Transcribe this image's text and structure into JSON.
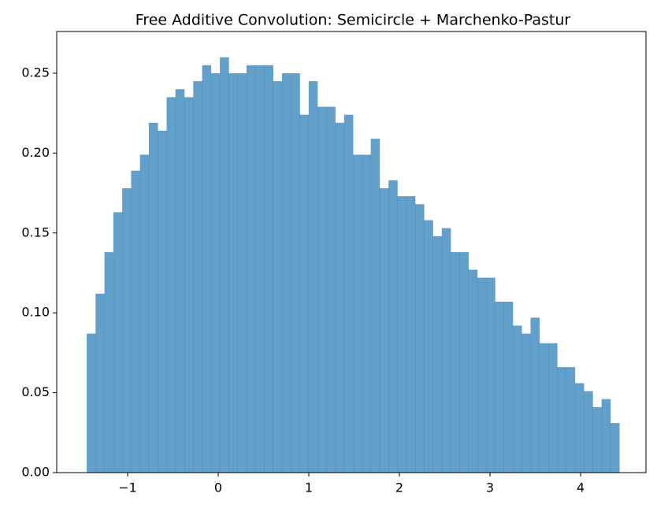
{
  "chart_data": {
    "type": "histogram",
    "title": "Free Additive Convolution: Semicircle + Marchenko-Pastur",
    "bins": [
      -1.452,
      -1.354,
      -1.256,
      -1.158,
      -1.06,
      -0.962,
      -0.864,
      -0.766,
      -0.668,
      -0.57,
      -0.472,
      -0.374,
      -0.276,
      -0.178,
      -0.08,
      0.018,
      0.116,
      0.214,
      0.312,
      0.41,
      0.508,
      0.606,
      0.704,
      0.802,
      0.9,
      0.998,
      1.096,
      1.194,
      1.292,
      1.39,
      1.488,
      1.586,
      1.684,
      1.782,
      1.88,
      1.978,
      2.076,
      2.174,
      2.272,
      2.37,
      2.468,
      2.566,
      2.664,
      2.762,
      2.86,
      2.958,
      3.056,
      3.154,
      3.252,
      3.35,
      3.448,
      3.546,
      3.644,
      3.742,
      3.84,
      3.938,
      4.036,
      4.134,
      4.232,
      4.33,
      4.428
    ],
    "counts": [
      0.087,
      0.112,
      0.138,
      0.163,
      0.178,
      0.189,
      0.199,
      0.219,
      0.214,
      0.235,
      0.24,
      0.235,
      0.245,
      0.255,
      0.25,
      0.26,
      0.25,
      0.25,
      0.255,
      0.255,
      0.255,
      0.245,
      0.25,
      0.25,
      0.224,
      0.245,
      0.229,
      0.229,
      0.219,
      0.224,
      0.199,
      0.199,
      0.209,
      0.178,
      0.183,
      0.173,
      0.173,
      0.168,
      0.158,
      0.148,
      0.153,
      0.138,
      0.138,
      0.127,
      0.122,
      0.122,
      0.107,
      0.107,
      0.092,
      0.087,
      0.097,
      0.081,
      0.081,
      0.066,
      0.066,
      0.056,
      0.051,
      0.041,
      0.046,
      0.031
    ],
    "color": "#1f77b4",
    "alpha": 0.7,
    "xlim": [
      -1.783,
      4.722
    ],
    "xticks": [
      {
        "value": -1,
        "label": "−1"
      },
      0,
      1,
      2,
      3,
      4
    ],
    "ylim": [
      0,
      0.2761
    ],
    "yticks": [
      {
        "value": 0,
        "label": "0.00"
      },
      {
        "value": 0.05,
        "label": "0.05"
      },
      {
        "value": 0.1,
        "label": "0.10"
      },
      {
        "value": 0.15,
        "label": "0.15"
      },
      {
        "value": 0.2,
        "label": "0.20"
      },
      {
        "value": 0.25,
        "label": "0.25"
      }
    ],
    "grid": false
  }
}
